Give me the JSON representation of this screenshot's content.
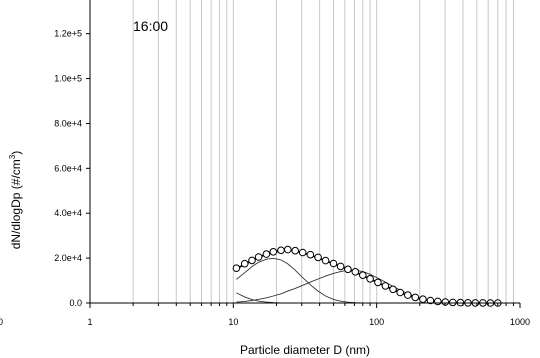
{
  "chart_data": {
    "type": "line",
    "annotation": "16:00",
    "xlabel": "Particle diameter D (nm)",
    "ylabel_main": "dN/dlogDp (#/cm",
    "ylabel_sup": "3",
    "ylabel_close": ")",
    "xscale": "log",
    "xlim": [
      1,
      1000
    ],
    "ylim": [
      0,
      135000
    ],
    "grid": "vertical",
    "x_ticks": [
      {
        "v": 1,
        "label": "1"
      },
      {
        "v": 10,
        "label": "10"
      },
      {
        "v": 100,
        "label": "100"
      },
      {
        "v": 1000,
        "label": "1000"
      }
    ],
    "y_ticks": [
      {
        "v": 0,
        "label": "0.0"
      },
      {
        "v": 20000,
        "label": "2.0e+4"
      },
      {
        "v": 40000,
        "label": "4.0e+4"
      },
      {
        "v": 60000,
        "label": "6.0e+4"
      },
      {
        "v": 80000,
        "label": "8.0e+4"
      },
      {
        "v": 100000,
        "label": "1.0e+5"
      },
      {
        "v": 120000,
        "label": "1.2e+5"
      }
    ],
    "left_clipped_label": "0",
    "series": [
      {
        "kind": "markers",
        "x": [
          10.5,
          12,
          13.5,
          15,
          17,
          19,
          21.5,
          24,
          27,
          30.5,
          34.5,
          39,
          44,
          50,
          56,
          63,
          71,
          80,
          90,
          102,
          115,
          130,
          146,
          165,
          186,
          210,
          237,
          267,
          301,
          340,
          384,
          433,
          488,
          551,
          622,
          700
        ],
        "y": [
          15500,
          17500,
          19000,
          20500,
          21800,
          22800,
          23500,
          23800,
          23300,
          22500,
          21500,
          20300,
          18900,
          17600,
          16300,
          15000,
          13900,
          12400,
          10800,
          9200,
          7600,
          6100,
          4700,
          3500,
          2500,
          1700,
          1100,
          700,
          450,
          280,
          170,
          100,
          60,
          35,
          20,
          10
        ]
      },
      {
        "kind": "line",
        "x": [
          10.5,
          12,
          13.5,
          15,
          17,
          19,
          21.5,
          24,
          27,
          30.5,
          34.5,
          39,
          44,
          50,
          56,
          63,
          71,
          80,
          90,
          102,
          115,
          130,
          146,
          165,
          186,
          210,
          237,
          267,
          301,
          340,
          384,
          433,
          488,
          551,
          622,
          700
        ],
        "y": [
          15300,
          17200,
          18900,
          20400,
          21700,
          22700,
          23300,
          23600,
          23200,
          22400,
          21300,
          20100,
          18800,
          17500,
          16300,
          15000,
          13800,
          12300,
          10700,
          9100,
          7500,
          6000,
          4600,
          3400,
          2400,
          1600,
          1050,
          650,
          420,
          260,
          160,
          95,
          55,
          30,
          18,
          9
        ]
      },
      {
        "kind": "mode",
        "x": [
          10.5,
          12,
          13.5,
          15,
          17,
          19,
          21.5,
          24,
          27,
          30.5,
          34.5,
          39,
          44,
          50,
          56
        ],
        "y": [
          4500,
          2700,
          1500,
          800,
          380,
          170,
          60,
          20,
          5,
          0,
          0,
          0,
          0,
          0,
          0
        ]
      },
      {
        "kind": "mode",
        "x": [
          10.5,
          12,
          13.5,
          15,
          17,
          19,
          21.5,
          24,
          27,
          30.5,
          34.5,
          39,
          44,
          50,
          56,
          63,
          71,
          80
        ],
        "y": [
          10500,
          13500,
          16200,
          18200,
          19500,
          19900,
          19200,
          17400,
          14600,
          11300,
          8100,
          5300,
          3100,
          1600,
          800,
          350,
          130,
          40
        ]
      },
      {
        "kind": "mode",
        "x": [
          10.5,
          12,
          13.5,
          15,
          17,
          19,
          21.5,
          24,
          27,
          30.5,
          34.5,
          39,
          44,
          50,
          56,
          63,
          71,
          80,
          90,
          102,
          115,
          130,
          146,
          165,
          186,
          210,
          237,
          267,
          301,
          340,
          384,
          433,
          488,
          551,
          622,
          700
        ],
        "y": [
          400,
          700,
          1100,
          1600,
          2300,
          3100,
          4100,
          5300,
          6500,
          7900,
          9300,
          10700,
          12000,
          13200,
          14000,
          14600,
          14600,
          14000,
          12800,
          11100,
          9300,
          7400,
          5700,
          4200,
          2900,
          1950,
          1250,
          780,
          460,
          270,
          150,
          80,
          40,
          20,
          10,
          5
        ]
      }
    ]
  }
}
